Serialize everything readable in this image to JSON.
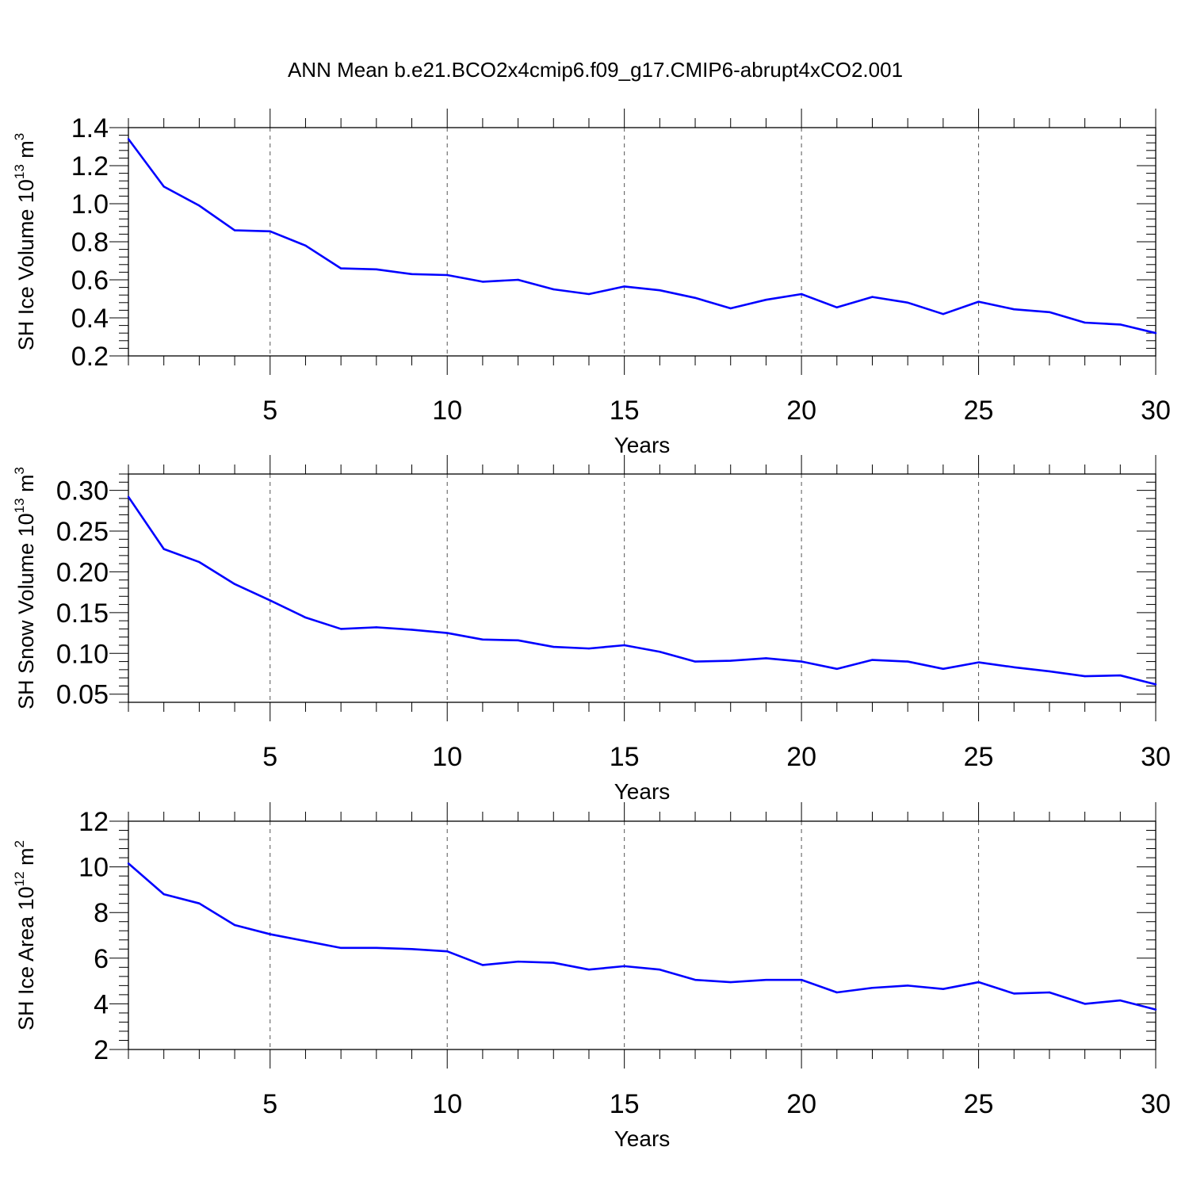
{
  "title": "ANN Mean b.e21.BCO2x4cmip6.f09_g17.CMIP6-abrupt4xCO2.001",
  "colors": {
    "series": "#0000ff",
    "axis": "#000000",
    "grid": "#555555"
  },
  "chart_data": [
    {
      "type": "line",
      "ylabel": {
        "main": "SH Ice Volume 10",
        "sup": "13",
        "mid": " m",
        "sup2": "3"
      },
      "xlabel": "Years",
      "xlim": [
        1,
        30
      ],
      "ylim": [
        0.2,
        1.4
      ],
      "xticks": [
        5,
        10,
        15,
        20,
        25,
        30
      ],
      "yticks": [
        0.2,
        0.4,
        0.6,
        0.8,
        1.0,
        1.2,
        1.4
      ],
      "ytick_labels": [
        "0.2",
        "0.4",
        "0.6",
        "0.8",
        "1.0",
        "1.2",
        "1.4"
      ],
      "grid": "x-dashed",
      "x": [
        1,
        2,
        3,
        4,
        5,
        6,
        7,
        8,
        9,
        10,
        11,
        12,
        13,
        14,
        15,
        16,
        17,
        18,
        19,
        20,
        21,
        22,
        23,
        24,
        25,
        26,
        27,
        28,
        29,
        30
      ],
      "values": [
        1.34,
        1.09,
        0.99,
        0.86,
        0.855,
        0.78,
        0.66,
        0.655,
        0.63,
        0.625,
        0.59,
        0.6,
        0.55,
        0.525,
        0.565,
        0.545,
        0.505,
        0.45,
        0.495,
        0.525,
        0.455,
        0.51,
        0.48,
        0.42,
        0.485,
        0.445,
        0.43,
        0.375,
        0.365,
        0.32
      ]
    },
    {
      "type": "line",
      "ylabel": {
        "main": "SH Snow Volume 10",
        "sup": "13",
        "mid": " m",
        "sup2": "3"
      },
      "xlabel": "Years",
      "xlim": [
        1,
        30
      ],
      "ylim": [
        0.04,
        0.32
      ],
      "xticks": [
        5,
        10,
        15,
        20,
        25,
        30
      ],
      "yticks": [
        0.05,
        0.1,
        0.15,
        0.2,
        0.25,
        0.3
      ],
      "ytick_labels": [
        "0.05",
        "0.10",
        "0.15",
        "0.20",
        "0.25",
        "0.30"
      ],
      "grid": "x-dashed",
      "x": [
        1,
        2,
        3,
        4,
        5,
        6,
        7,
        8,
        9,
        10,
        11,
        12,
        13,
        14,
        15,
        16,
        17,
        18,
        19,
        20,
        21,
        22,
        23,
        24,
        25,
        26,
        27,
        28,
        29,
        30
      ],
      "values": [
        0.292,
        0.228,
        0.212,
        0.185,
        0.165,
        0.144,
        0.13,
        0.132,
        0.129,
        0.125,
        0.117,
        0.116,
        0.108,
        0.106,
        0.11,
        0.102,
        0.09,
        0.091,
        0.094,
        0.09,
        0.081,
        0.092,
        0.09,
        0.081,
        0.089,
        0.083,
        0.078,
        0.072,
        0.073,
        0.062
      ]
    },
    {
      "type": "line",
      "ylabel": {
        "main": "SH Ice Area 10",
        "sup": "12",
        "mid": " m",
        "sup2": "2"
      },
      "xlabel": "Years",
      "xlim": [
        1,
        30
      ],
      "ylim": [
        2,
        12
      ],
      "xticks": [
        5,
        10,
        15,
        20,
        25,
        30
      ],
      "yticks": [
        2,
        4,
        6,
        8,
        10,
        12
      ],
      "ytick_labels": [
        "2",
        "4",
        "6",
        "8",
        "10",
        "12"
      ],
      "grid": "x-dashed",
      "x": [
        1,
        2,
        3,
        4,
        5,
        6,
        7,
        8,
        9,
        10,
        11,
        12,
        13,
        14,
        15,
        16,
        17,
        18,
        19,
        20,
        21,
        22,
        23,
        24,
        25,
        26,
        27,
        28,
        29,
        30
      ],
      "values": [
        10.15,
        8.8,
        8.4,
        7.45,
        7.05,
        6.75,
        6.45,
        6.45,
        6.4,
        6.3,
        5.7,
        5.85,
        5.8,
        5.5,
        5.65,
        5.5,
        5.05,
        4.95,
        5.05,
        5.05,
        4.5,
        4.7,
        4.8,
        4.65,
        4.95,
        4.45,
        4.5,
        4.0,
        4.15,
        3.75
      ]
    }
  ]
}
